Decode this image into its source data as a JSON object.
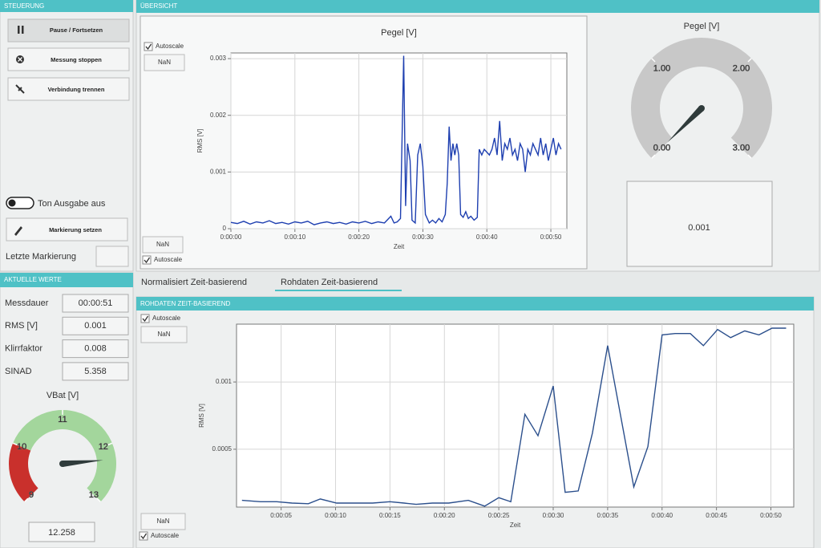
{
  "control": {
    "title": "STEUERUNG",
    "buttons": [
      "Pause / Fortsetzen",
      "Messung stoppen",
      "Verbindung trennen"
    ],
    "toggle": "Ton Ausgabe aus",
    "mark_button": "Markierung setzen",
    "last_mark_label": "Letzte Markierung"
  },
  "overview": {
    "title": "ÜBERSICHT"
  },
  "current": {
    "title": "AKTUELLE WERTE",
    "rows": [
      [
        "Messdauer",
        "00:00:51"
      ],
      [
        "RMS [V]",
        "0.001"
      ],
      [
        "Klirrfaktor",
        "0.008"
      ],
      [
        "SINAD",
        "5.358"
      ]
    ]
  },
  "tabs": [
    "Normalisiert Zeit-basierend",
    "Rohdaten Zeit-basierend"
  ],
  "raw": {
    "title": "ROHDATEN ZEIT-BASIEREND"
  },
  "overview_chart": {
    "type": "line",
    "title": "Pegel [V]",
    "xlabel": "Zeit",
    "ylabel": "RMS [V]",
    "autoscale_top": "Autoscale",
    "nan_top": "NaN",
    "nan_bottom": "NaN",
    "autoscale_bottom": "Autoscale",
    "color": "#1e3fb0",
    "grid": true,
    "xlim": [
      0,
      52.5
    ],
    "ylim": [
      0,
      0.0031
    ],
    "xticks": [
      {
        "value": 0,
        "label": "0:00:00"
      },
      {
        "value": 10,
        "label": "0:00:10"
      },
      {
        "value": 20,
        "label": "0:00:20"
      },
      {
        "value": 30,
        "label": "0:00:30"
      },
      {
        "value": 40,
        "label": "0:00:40"
      },
      {
        "value": 50,
        "label": "0:00:50"
      }
    ],
    "yticks": [
      0,
      0.001,
      0.002,
      0.003
    ],
    "x": [
      0,
      1,
      2,
      3,
      4,
      5,
      6,
      7,
      8,
      9,
      10,
      11,
      12,
      13,
      14,
      15,
      16,
      17,
      18,
      19,
      20,
      21,
      22,
      23,
      24,
      25,
      25.5,
      26,
      26.5,
      27,
      27.3,
      27.6,
      28,
      28.3,
      28.8,
      29.2,
      29.6,
      30,
      30.4,
      31,
      31.5,
      32,
      32.5,
      33,
      33.5,
      33.8,
      34.1,
      34.4,
      34.7,
      35,
      35.3,
      35.6,
      35.9,
      36.3,
      36.7,
      37.1,
      37.5,
      38,
      38.5,
      38.8,
      39.2,
      39.6,
      40,
      40.4,
      40.8,
      41.2,
      41.6,
      42,
      42.4,
      42.8,
      43.2,
      43.6,
      44,
      44.4,
      44.8,
      45.2,
      45.6,
      46,
      46.4,
      46.8,
      47.2,
      47.6,
      48,
      48.4,
      48.8,
      49.2,
      49.6,
      50,
      50.4,
      50.8,
      51.2,
      51.6
    ],
    "values": [
      0.00011,
      9e-05,
      0.00013,
      8e-05,
      0.00012,
      0.0001,
      0.00014,
      9e-05,
      0.00011,
      8e-05,
      0.00012,
      0.0001,
      0.00013,
      7e-05,
      0.0001,
      0.00012,
      9e-05,
      0.00011,
      8e-05,
      0.00012,
      0.0001,
      0.00013,
      9e-05,
      0.00012,
      0.0001,
      0.00022,
      0.0001,
      0.00012,
      0.00018,
      0.00305,
      0.0004,
      0.0015,
      0.0012,
      0.00015,
      0.0001,
      0.0013,
      0.0015,
      0.0011,
      0.00025,
      0.0001,
      0.00015,
      0.0001,
      0.00018,
      0.00012,
      0.00025,
      0.0008,
      0.0018,
      0.0012,
      0.0015,
      0.0013,
      0.0015,
      0.0013,
      0.00025,
      0.0002,
      0.0003,
      0.00018,
      0.00022,
      0.00015,
      0.0002,
      0.0014,
      0.0013,
      0.0014,
      0.00135,
      0.0013,
      0.0014,
      0.0016,
      0.0013,
      0.0019,
      0.0012,
      0.0015,
      0.0014,
      0.0016,
      0.0013,
      0.0014,
      0.0012,
      0.0015,
      0.0014,
      0.001,
      0.0014,
      0.0013,
      0.0015,
      0.0014,
      0.0013,
      0.0016,
      0.0013,
      0.0015,
      0.0012,
      0.0014,
      0.0016,
      0.0013,
      0.0015,
      0.0014
    ]
  },
  "level_gauge": {
    "type": "gauge",
    "title": "Pegel [V]",
    "value": 0.001,
    "lim": [
      0,
      3
    ],
    "color": "#c8c8c8",
    "needle_color": "#2f3b3b",
    "ticks": [
      {
        "value": 0,
        "label": "0.00"
      },
      {
        "value": 1,
        "label": "1.00"
      },
      {
        "value": 2,
        "label": "2.00"
      },
      {
        "value": 3,
        "label": "3.00"
      }
    ]
  },
  "vbat_gauge": {
    "type": "gauge",
    "title": "VBat [V]",
    "value": 12.258,
    "lim": [
      9,
      13
    ],
    "needle_color": "#2f3b3b",
    "zones": [
      {
        "from": 9,
        "to": 10,
        "color": "#c9302c"
      },
      {
        "from": 10,
        "to": 13,
        "color": "#a3d69c"
      }
    ],
    "ticks": [
      9,
      10,
      11,
      12,
      13
    ]
  },
  "raw_chart": {
    "type": "line",
    "xlabel": "Zeit",
    "ylabel": "RMS [V]",
    "autoscale_top": "Autoscale",
    "nan_top": "NaN",
    "nan_bottom": "NaN",
    "autoscale_bottom": "Autoscale",
    "color": "#2b4f8c",
    "grid": true,
    "xlim": [
      0.9,
      52.1
    ],
    "ylim": [
      7e-05,
      0.00143
    ],
    "xticks": [
      {
        "value": 5,
        "label": "0:00:05"
      },
      {
        "value": 10,
        "label": "0:00:10"
      },
      {
        "value": 15,
        "label": "0:00:15"
      },
      {
        "value": 20,
        "label": "0:00:20"
      },
      {
        "value": 25,
        "label": "0:00:25"
      },
      {
        "value": 30,
        "label": "0:00:30"
      },
      {
        "value": 35,
        "label": "0:00:35"
      },
      {
        "value": 40,
        "label": "0:00:40"
      },
      {
        "value": 45,
        "label": "0:00:45"
      },
      {
        "value": 50,
        "label": "0:00:50"
      }
    ],
    "yticks": [
      0.0005,
      0.001
    ],
    "x": [
      1.4,
      3.1,
      4.6,
      6,
      7.5,
      8.6,
      10.1,
      11.6,
      13.4,
      15,
      16.3,
      17.4,
      18.9,
      20.4,
      22.2,
      23.7,
      25,
      26.1,
      27.4,
      28.6,
      30,
      31.1,
      32.3,
      33.6,
      35,
      37.4,
      38.7,
      40,
      41.2,
      42.6,
      43.8,
      45.1,
      46.3,
      47.6,
      48.9,
      50.1,
      51.4
    ],
    "values": [
      0.00012,
      0.00011,
      0.00011,
      0.0001,
      9.5e-05,
      0.00013,
      0.0001,
      0.0001,
      0.0001,
      0.00011,
      0.0001,
      9e-05,
      0.0001,
      0.0001,
      0.00012,
      7.7e-05,
      0.00014,
      0.00011,
      0.00076,
      0.0006,
      0.00097,
      0.00018,
      0.00019,
      0.00062,
      0.00127,
      0.00022,
      0.00052,
      0.00135,
      0.00136,
      0.00136,
      0.00127,
      0.00139,
      0.00133,
      0.00138,
      0.00135,
      0.0014,
      0.0014
    ]
  }
}
